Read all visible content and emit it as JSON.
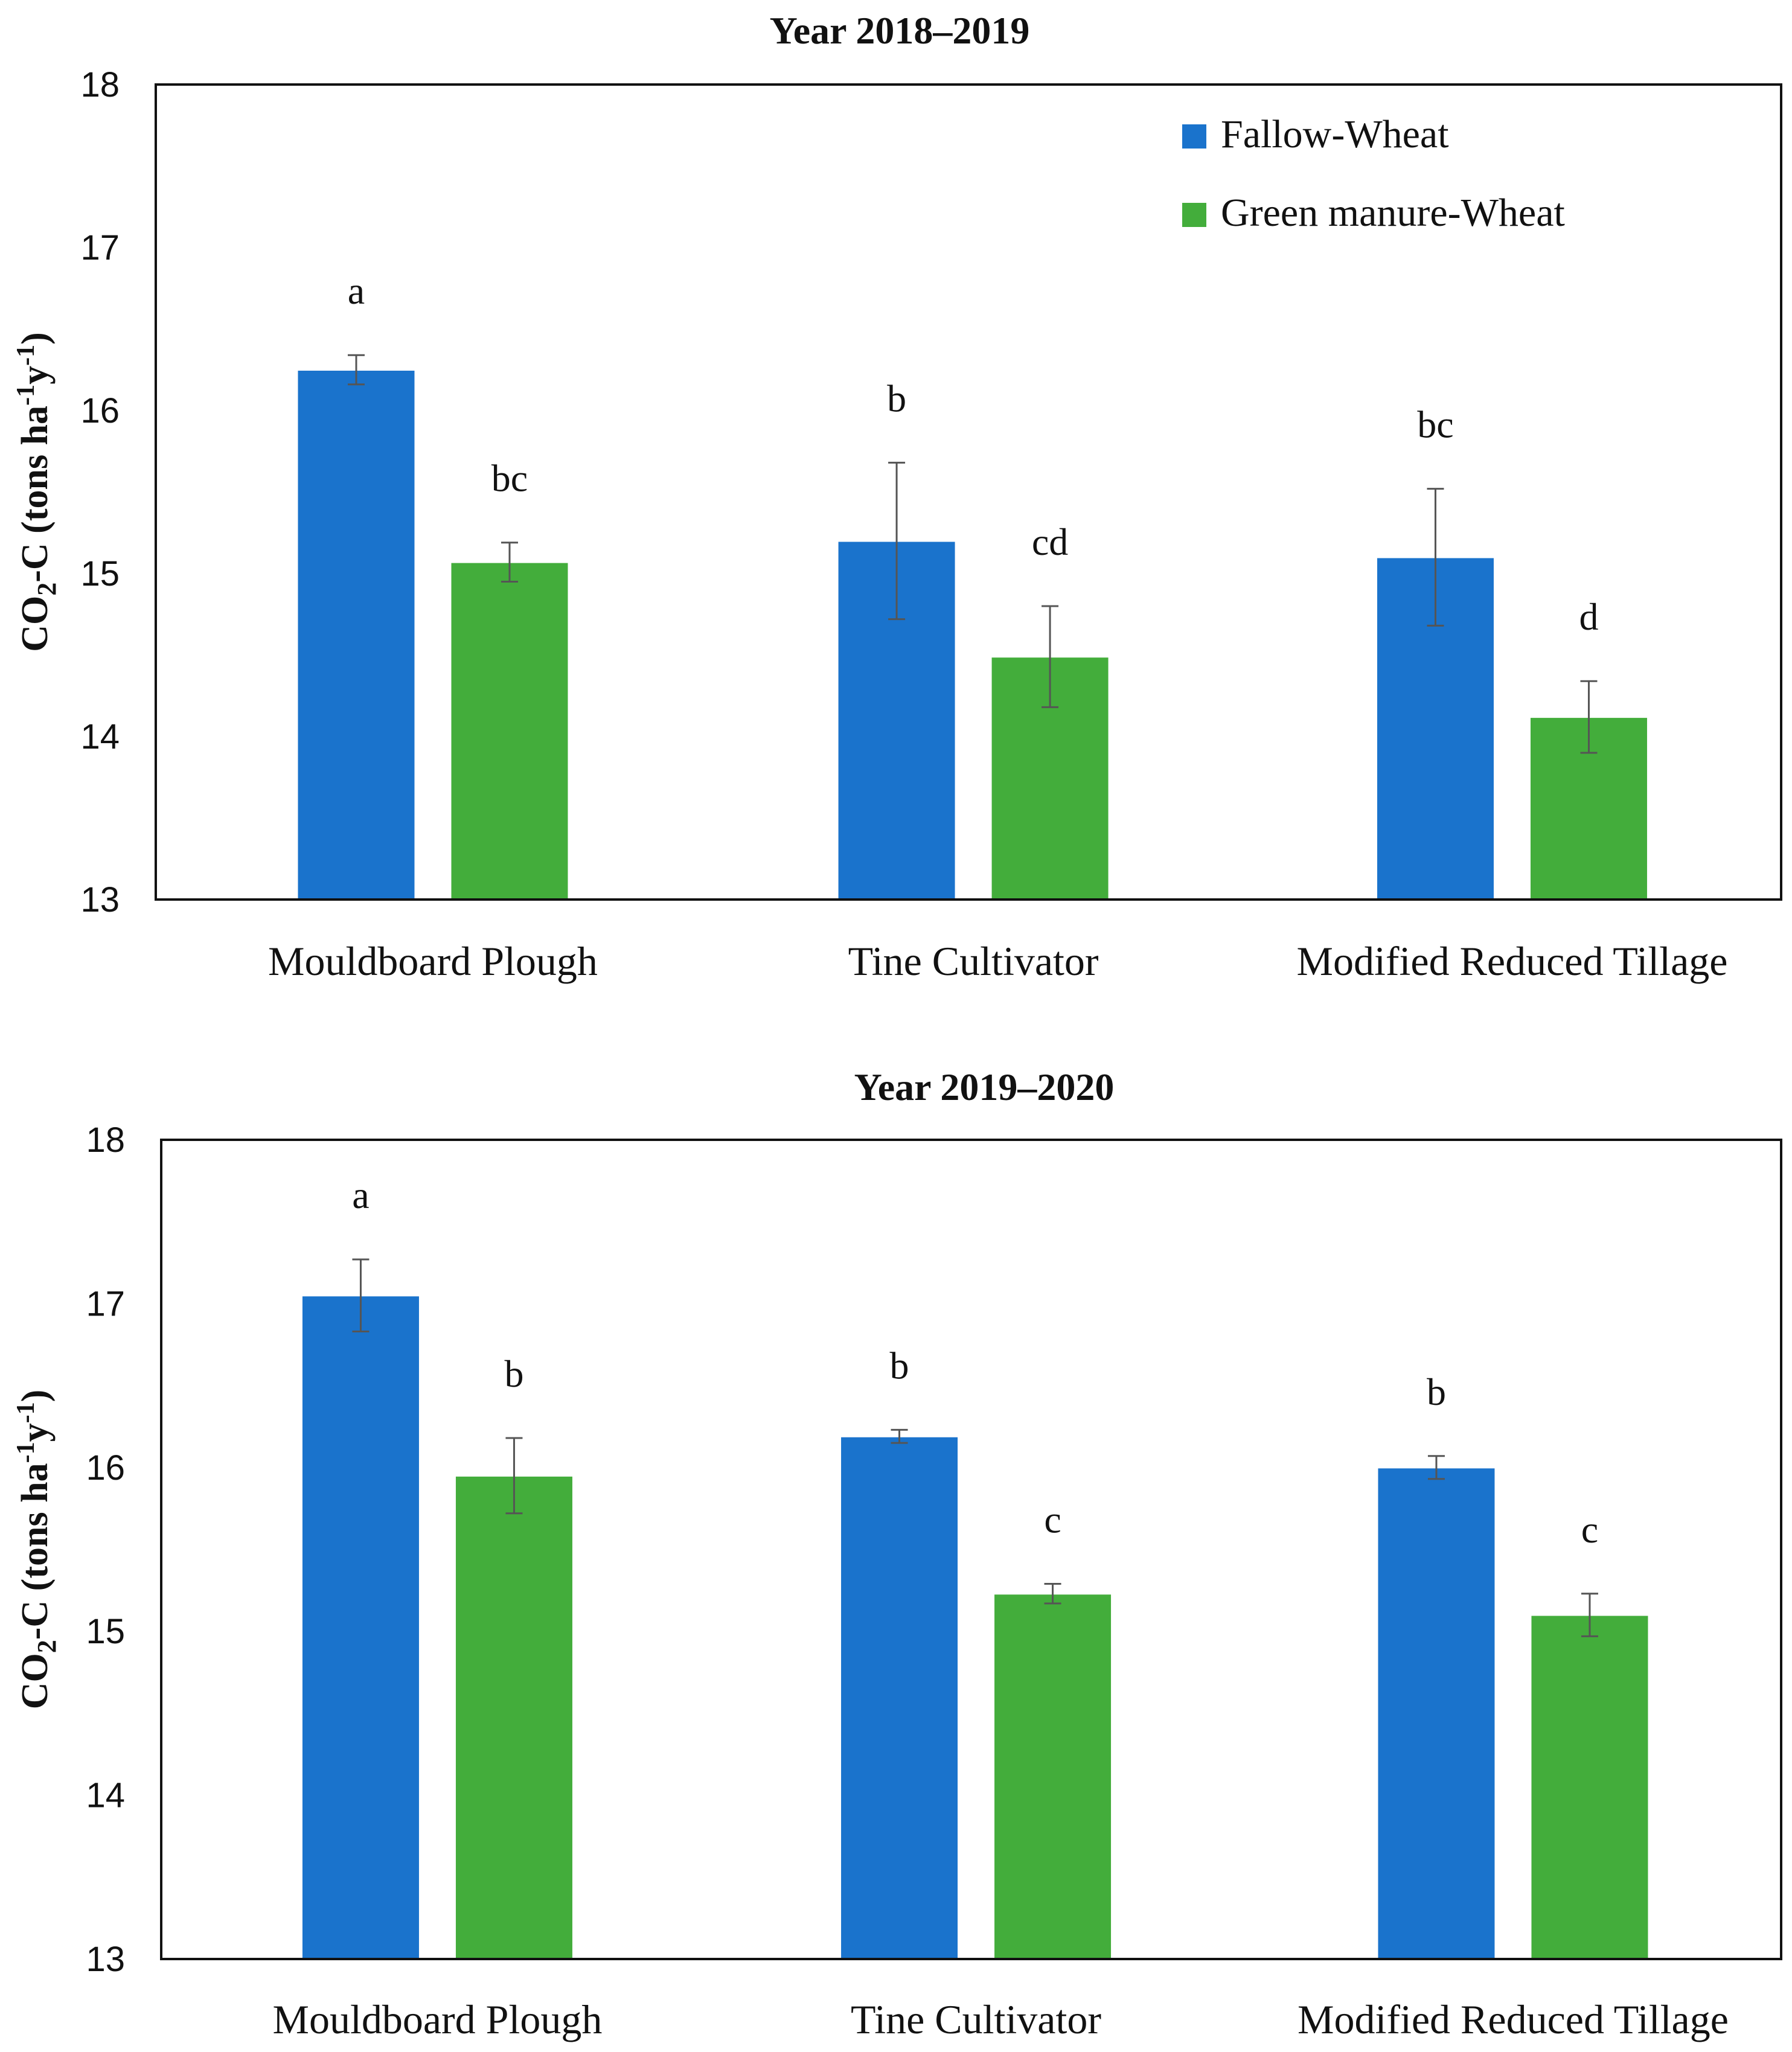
{
  "chart_data": [
    {
      "type": "bar",
      "title": "Year 2018–2019",
      "ylabel": {
        "main": "CO",
        "sub": "2",
        "rest": "-C (tons ha",
        "sup1": "-1",
        "mid": "y",
        "sup2": "-1",
        "end": ")"
      },
      "xlabel": "",
      "ylim": [
        13,
        18
      ],
      "yticks": [
        "13",
        "14",
        "15",
        "16",
        "17",
        "18"
      ],
      "categories": [
        "Mouldboard Plough",
        "Tine Cultivator",
        "Modified Reduced Tillage"
      ],
      "legend": {
        "placement": "top-right",
        "show": true
      },
      "series": [
        {
          "name": "Fallow-Wheat",
          "color": "#1a73cc",
          "values": [
            16.25,
            15.2,
            15.1
          ],
          "errors": [
            0.09,
            0.48,
            0.42
          ],
          "letters": [
            "a",
            "b",
            "bc"
          ]
        },
        {
          "name": "Green manure-Wheat",
          "color": "#43ad3b",
          "values": [
            15.07,
            14.49,
            14.12
          ],
          "errors": [
            0.12,
            0.31,
            0.22
          ],
          "letters": [
            "bc",
            "cd",
            "d"
          ]
        }
      ]
    },
    {
      "type": "bar",
      "title": "Year 2019–2020",
      "ylabel": {
        "main": "CO",
        "sub": "2",
        "rest": "-C (tons ha",
        "sup1": "-1",
        "mid": "y",
        "sup2": "-1",
        "end": ")"
      },
      "xlabel": "",
      "ylim": [
        13,
        18
      ],
      "yticks": [
        "13",
        "14",
        "15",
        "16",
        "17",
        "18"
      ],
      "categories": [
        "Mouldboard Plough",
        "Tine Cultivator",
        "Modified Reduced Tillage"
      ],
      "legend": {
        "placement": "none",
        "show": false
      },
      "series": [
        {
          "name": "Fallow-Wheat",
          "color": "#1a73cc",
          "values": [
            17.05,
            16.19,
            16.0
          ],
          "errors": [
            0.22,
            0.04,
            0.07
          ],
          "letters": [
            "a",
            "b",
            "b"
          ]
        },
        {
          "name": "Green manure-Wheat",
          "color": "#43ad3b",
          "values": [
            15.95,
            15.23,
            15.1
          ],
          "errors": [
            0.23,
            0.06,
            0.13
          ],
          "letters": [
            "b",
            "c",
            "c"
          ]
        }
      ]
    }
  ]
}
